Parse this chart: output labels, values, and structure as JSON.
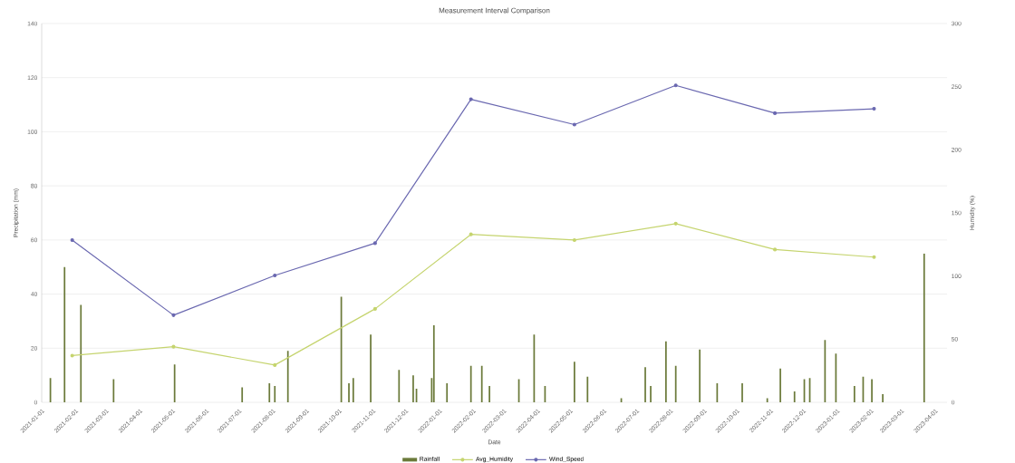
{
  "chart_data": {
    "type": "bar",
    "title": "Measurement Interval Comparison",
    "xlabel": "Date",
    "ylabel": "Precipitation (mm)",
    "y2label": "Humidity (%)",
    "xlim": [
      "2021-01-01",
      "2023-04-12"
    ],
    "xticks": [
      "2021-01-01",
      "2021-02-01",
      "2021-03-01",
      "2021-04-01",
      "2021-05-01",
      "2021-06-01",
      "2021-07-01",
      "2021-08-01",
      "2021-09-01",
      "2021-10-01",
      "2021-11-01",
      "2021-12-01",
      "2022-01-01",
      "2022-02-01",
      "2022-03-01",
      "2022-04-01",
      "2022-05-01",
      "2022-06-01",
      "2022-07-01",
      "2022-08-01",
      "2022-09-01",
      "2022-10-01",
      "2022-11-01",
      "2022-12-01",
      "2023-01-01",
      "2023-02-01",
      "2023-03-01",
      "2023-04-01"
    ],
    "ylim": [
      0,
      140
    ],
    "yticks": [
      0,
      20,
      40,
      60,
      80,
      100,
      120,
      140
    ],
    "y2lim": [
      0,
      300
    ],
    "y2ticks": [
      0,
      50,
      100,
      150,
      200,
      250,
      300
    ],
    "grid": "y",
    "legend": "bottom",
    "series": [
      {
        "name": "Rainfall",
        "color": "#6b7a3a",
        "x": [
          "2021-01-09",
          "2021-01-22",
          "2021-02-06",
          "2021-03-08",
          "2021-05-03",
          "2021-07-04",
          "2021-07-29",
          "2021-08-03",
          "2021-08-15",
          "2021-10-03",
          "2021-10-10",
          "2021-10-14",
          "2021-10-30",
          "2021-11-25",
          "2021-12-08",
          "2021-12-11",
          "2021-12-25",
          "2021-12-27",
          "2022-01-08",
          "2022-01-30",
          "2022-02-09",
          "2022-02-16",
          "2022-03-15",
          "2022-03-29",
          "2022-04-08",
          "2022-05-05",
          "2022-05-17",
          "2022-06-17",
          "2022-07-09",
          "2022-07-14",
          "2022-07-28",
          "2022-08-06",
          "2022-08-28",
          "2022-09-13",
          "2022-10-06",
          "2022-10-29",
          "2022-11-10",
          "2022-11-23",
          "2022-12-02",
          "2022-12-07",
          "2022-12-21",
          "2022-12-31",
          "2023-01-17",
          "2023-01-25",
          "2023-02-02",
          "2023-02-12",
          "2023-03-22"
        ],
        "values": [
          9,
          50,
          36,
          8.5,
          14,
          5.5,
          7,
          6,
          19,
          39,
          7,
          9,
          25,
          12,
          10,
          5,
          9,
          28.5,
          7,
          13.5,
          13.5,
          6,
          8.5,
          25,
          6,
          15,
          9.5,
          1.5,
          13,
          6,
          22.5,
          13.5,
          19.5,
          7,
          7,
          1.5,
          12.5,
          4,
          8.5,
          9,
          23,
          18,
          6,
          9.5,
          8.5,
          3,
          55
        ]
      },
      {
        "name": "Avg_Humidity",
        "type": "line",
        "axis": "y2",
        "color": "#c5d46e",
        "marker": "circle",
        "x": [
          "2021-01-29",
          "2021-05-02",
          "2021-08-03",
          "2021-11-03",
          "2022-01-30",
          "2022-05-05",
          "2022-08-06",
          "2022-11-05",
          "2023-02-04"
        ],
        "values": [
          37,
          44,
          29.5,
          74,
          133,
          128.5,
          141.5,
          121,
          115
        ]
      },
      {
        "name": "Wind_Speed",
        "type": "line",
        "axis": "y2",
        "color": "#6a68b0",
        "marker": "circle",
        "x": [
          "2021-01-29",
          "2021-05-02",
          "2021-08-03",
          "2021-11-03",
          "2022-01-30",
          "2022-05-05",
          "2022-08-06",
          "2022-11-05",
          "2023-02-04"
        ],
        "values": [
          128.5,
          69,
          100.5,
          126,
          240,
          220,
          251,
          229,
          232.5
        ]
      }
    ]
  }
}
